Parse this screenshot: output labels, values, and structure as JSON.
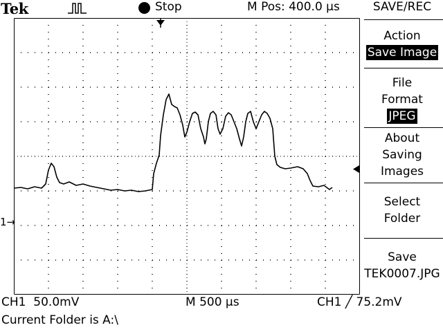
{
  "brand": "Tek",
  "status": {
    "trigger_icon": "pulse-trigger-icon",
    "run_state": "Stop",
    "m_pos": "M Pos: 400.0 µs"
  },
  "menu": {
    "title": "SAVE/REC",
    "action": {
      "label": "Action",
      "value": "Save Image"
    },
    "file_format": {
      "line1": "File",
      "line2": "Format",
      "value": "JPEG"
    },
    "about": {
      "line1": "About",
      "line2": "Saving",
      "line3": "Images"
    },
    "select_folder": {
      "line1": "Select",
      "line2": "Folder"
    },
    "save": {
      "line1": "Save",
      "line2": "TEK0007.JPG"
    }
  },
  "readouts": {
    "ch1_scale": "CH1  50.0mV",
    "timebase": "M 500 µs",
    "trigger": "CH1 ╱ 75.2mV",
    "folder": "Current Folder is A:\\"
  },
  "markers": {
    "ch1_ground": "1→"
  },
  "colors": {
    "trace": "#000000",
    "background": "#ffffff"
  }
}
